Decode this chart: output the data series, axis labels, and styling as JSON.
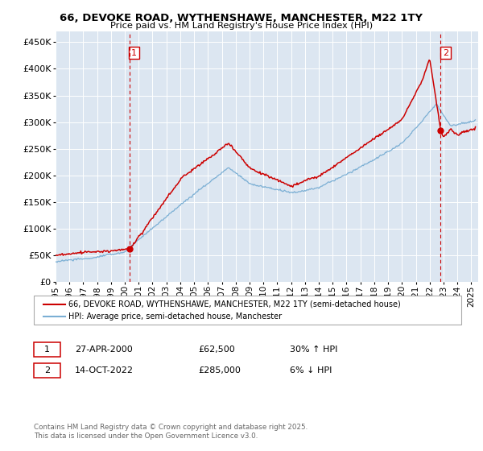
{
  "title_line1": "66, DEVOKE ROAD, WYTHENSHAWE, MANCHESTER, M22 1TY",
  "title_line2": "Price paid vs. HM Land Registry's House Price Index (HPI)",
  "ytick_vals": [
    0,
    50000,
    100000,
    150000,
    200000,
    250000,
    300000,
    350000,
    400000,
    450000
  ],
  "ylim": [
    0,
    470000
  ],
  "xlim_start": 1995.0,
  "xlim_end": 2025.5,
  "sale1_x": 2000.32,
  "sale1_y": 62500,
  "sale2_x": 2022.79,
  "sale2_y": 285000,
  "property_color": "#cc0000",
  "hpi_color": "#7bafd4",
  "background_color": "#dce6f1",
  "legend_line1": "66, DEVOKE ROAD, WYTHENSHAWE, MANCHESTER, M22 1TY (semi-detached house)",
  "legend_line2": "HPI: Average price, semi-detached house, Manchester",
  "annotation1_label": "1",
  "annotation1_date": "27-APR-2000",
  "annotation1_price": "£62,500",
  "annotation1_hpi": "30% ↑ HPI",
  "annotation2_label": "2",
  "annotation2_date": "14-OCT-2022",
  "annotation2_price": "£285,000",
  "annotation2_hpi": "6% ↓ HPI",
  "footer": "Contains HM Land Registry data © Crown copyright and database right 2025.\nThis data is licensed under the Open Government Licence v3.0.",
  "xtick_years": [
    1995,
    1996,
    1997,
    1998,
    1999,
    2000,
    2001,
    2002,
    2003,
    2004,
    2005,
    2006,
    2007,
    2008,
    2009,
    2010,
    2011,
    2012,
    2013,
    2014,
    2015,
    2016,
    2017,
    2018,
    2019,
    2020,
    2021,
    2022,
    2023,
    2024,
    2025
  ]
}
